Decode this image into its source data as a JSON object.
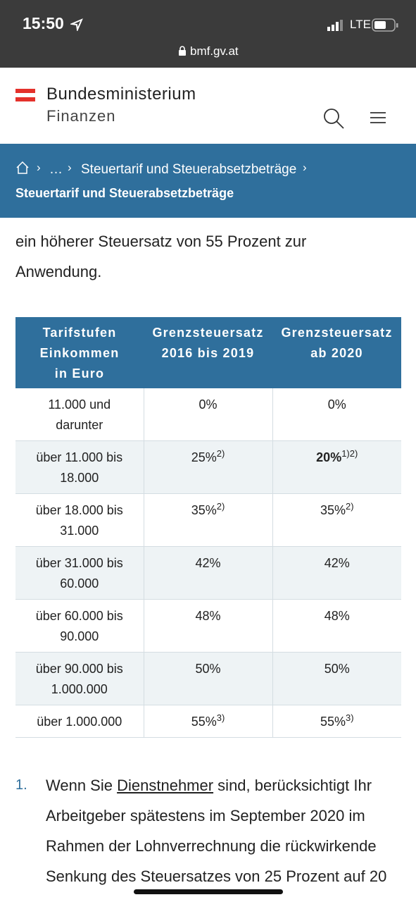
{
  "status_bar": {
    "time": "15:50",
    "network": "LTE"
  },
  "browser": {
    "url": "bmf.gv.at"
  },
  "header": {
    "title_line1": "Bundesministerium",
    "title_line2": "Finanzen"
  },
  "breadcrumb": {
    "ellipsis": "…",
    "parent": "Steuertarif und Steuerabsetzbeträge",
    "current": "Steuertarif und Steuerabsetzbeträge"
  },
  "intro": "ein höherer Steuersatz von 55 Prozent zur Anwendung.",
  "table": {
    "headers": [
      [
        "Tarifstufen",
        "Einkommen",
        "in Euro"
      ],
      [
        "Grenzsteuersatz",
        "2016 bis 2019"
      ],
      [
        "Grenzsteuersatz",
        "ab 2020"
      ]
    ],
    "rows": [
      [
        {
          "text": "11.000 und darunter"
        },
        {
          "text": "0%"
        },
        {
          "text": "0%"
        }
      ],
      [
        {
          "text": "über 11.000 bis 18.000"
        },
        {
          "text": "25%",
          "sup": "2)"
        },
        {
          "text": "20%",
          "sup": "1)2)",
          "bold": true
        }
      ],
      [
        {
          "text": "über 18.000 bis 31.000"
        },
        {
          "text": "35%",
          "sup": "2)"
        },
        {
          "text": "35%",
          "sup": "2)"
        }
      ],
      [
        {
          "text": "über 31.000 bis 60.000"
        },
        {
          "text": "42%"
        },
        {
          "text": "42%"
        }
      ],
      [
        {
          "text": "über 60.000 bis 90.000"
        },
        {
          "text": "48%"
        },
        {
          "text": "48%"
        }
      ],
      [
        {
          "text": "über 90.000 bis 1.000.000"
        },
        {
          "text": "50%"
        },
        {
          "text": "50%"
        }
      ],
      [
        {
          "text": "über 1.000.000"
        },
        {
          "text": "55%",
          "sup": "3)"
        },
        {
          "text": "55%",
          "sup": "3)"
        }
      ]
    ]
  },
  "list": [
    {
      "number": "1.",
      "before": "Wenn Sie ",
      "link": "Dienstnehmer",
      "after": " sind, berücksichtigt Ihr Arbeitgeber spätestens im September 2020 im Rahmen der Lohnverrechnung die rückwirkende Senkung des Steuersatzes von 25 Prozent auf 20"
    }
  ]
}
